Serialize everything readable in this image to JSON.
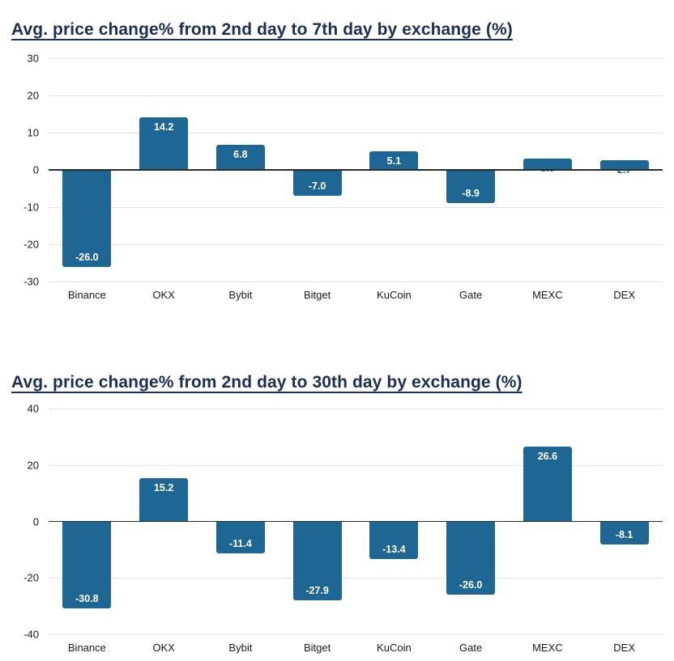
{
  "styles": {
    "background": "#ffffff",
    "bar_color": "#1e6795",
    "title_color": "#1a2f55",
    "grid_color": "#e3e3e3",
    "zero_axis_color": "#2b2b2b",
    "tick_label_color": "#1a1a1a",
    "inside_label_color": "#ffffff",
    "outside_label_color": "#1e6795"
  },
  "chart_data": [
    {
      "type": "bar",
      "title": "Avg. price change% from 2nd day to 7th day by exchange (%)",
      "categories": [
        "Binance",
        "OKX",
        "Bybit",
        "Bitget",
        "KuCoin",
        "Gate",
        "MEXC",
        "DEX"
      ],
      "values": [
        -26.0,
        14.2,
        6.8,
        -7.0,
        5.1,
        -8.9,
        3.0,
        2.7
      ],
      "value_labels": [
        "-26.0",
        "14.2",
        "6.8",
        "-7.0",
        "5.1",
        "-8.9",
        "3.0",
        "2.7"
      ],
      "xlabel": "",
      "ylabel": "",
      "ylim": [
        -30,
        30
      ],
      "yticks": [
        30,
        20,
        10,
        0,
        -10,
        -20,
        -30
      ],
      "grid": true,
      "legend": "none"
    },
    {
      "type": "bar",
      "title": "Avg. price change% from 2nd day to 30th day by exchange (%)",
      "categories": [
        "Binance",
        "OKX",
        "Bybit",
        "Bitget",
        "KuCoin",
        "Gate",
        "MEXC",
        "DEX"
      ],
      "values": [
        -30.8,
        15.2,
        -11.4,
        -27.9,
        -13.4,
        -26.0,
        26.6,
        -8.1
      ],
      "value_labels": [
        "-30.8",
        "15.2",
        "-11.4",
        "-27.9",
        "-13.4",
        "-26.0",
        "26.6",
        "-8.1"
      ],
      "xlabel": "",
      "ylabel": "",
      "ylim": [
        -40,
        40
      ],
      "yticks": [
        40,
        20,
        0,
        -20,
        -40
      ],
      "grid": true,
      "legend": "none"
    }
  ]
}
